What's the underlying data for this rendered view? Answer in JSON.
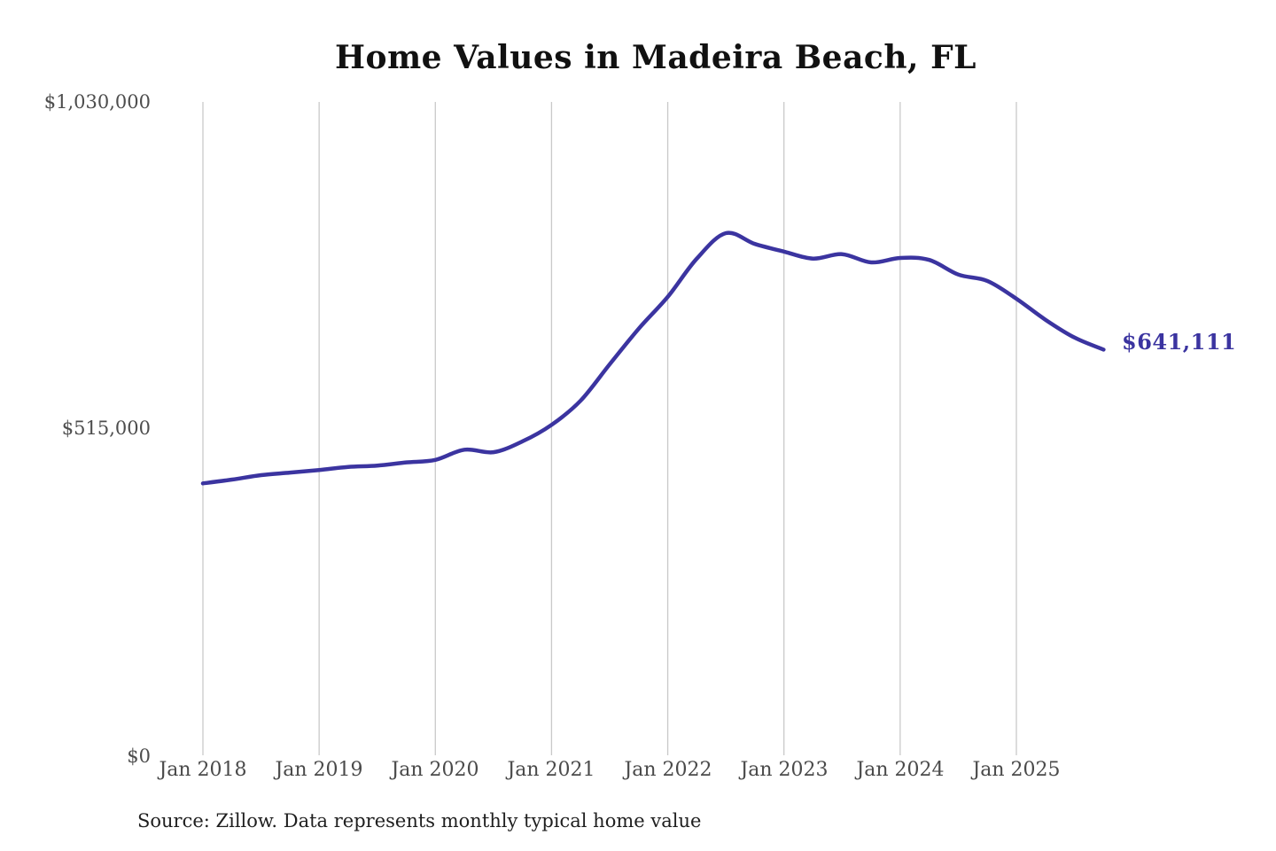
{
  "chart_data": {
    "type": "line",
    "title": "Home Values in Madeira Beach, FL",
    "source_note": "Source: Zillow. Data represents monthly typical home value",
    "end_label": "$641,111",
    "line_color": "#3b34a0",
    "grid_color": "#c9c9c9",
    "grid": "vertical-only",
    "legend_position": "none",
    "xlabel": "",
    "ylabel": "",
    "ylim": [
      0,
      1030000
    ],
    "y_ticks": [
      "$0",
      "$515,000",
      "$1,030,000"
    ],
    "x_ticks": [
      "Jan 2018",
      "Jan 2019",
      "Jan 2020",
      "Jan 2021",
      "Jan 2022",
      "Jan 2023",
      "Jan 2024",
      "Jan 2025"
    ],
    "series": [
      {
        "name": "Monthly typical home value",
        "points": [
          [
            "Jan 2018",
            431000
          ],
          [
            "Apr 2018",
            437000
          ],
          [
            "Jul 2018",
            444000
          ],
          [
            "Oct 2018",
            448000
          ],
          [
            "Jan 2019",
            452000
          ],
          [
            "Apr 2019",
            457000
          ],
          [
            "Jul 2019",
            459000
          ],
          [
            "Oct 2019",
            464000
          ],
          [
            "Jan 2020",
            468000
          ],
          [
            "Apr 2020",
            484000
          ],
          [
            "Jul 2020",
            480000
          ],
          [
            "Oct 2020",
            497000
          ],
          [
            "Jan 2021",
            523000
          ],
          [
            "Apr 2021",
            561000
          ],
          [
            "Jul 2021",
            618000
          ],
          [
            "Oct 2021",
            674000
          ],
          [
            "Jan 2022",
            724000
          ],
          [
            "Apr 2022",
            784000
          ],
          [
            "Jul 2022",
            824000
          ],
          [
            "Oct 2022",
            807000
          ],
          [
            "Jan 2023",
            795000
          ],
          [
            "Apr 2023",
            784000
          ],
          [
            "Jul 2023",
            791000
          ],
          [
            "Oct 2023",
            778000
          ],
          [
            "Jan 2024",
            785000
          ],
          [
            "Apr 2024",
            782000
          ],
          [
            "Jul 2024",
            759000
          ],
          [
            "Oct 2024",
            749000
          ],
          [
            "Jan 2025",
            721000
          ],
          [
            "Apr 2025",
            688000
          ],
          [
            "Jul 2025",
            660000
          ],
          [
            "Oct 2025",
            641111
          ]
        ]
      }
    ]
  }
}
